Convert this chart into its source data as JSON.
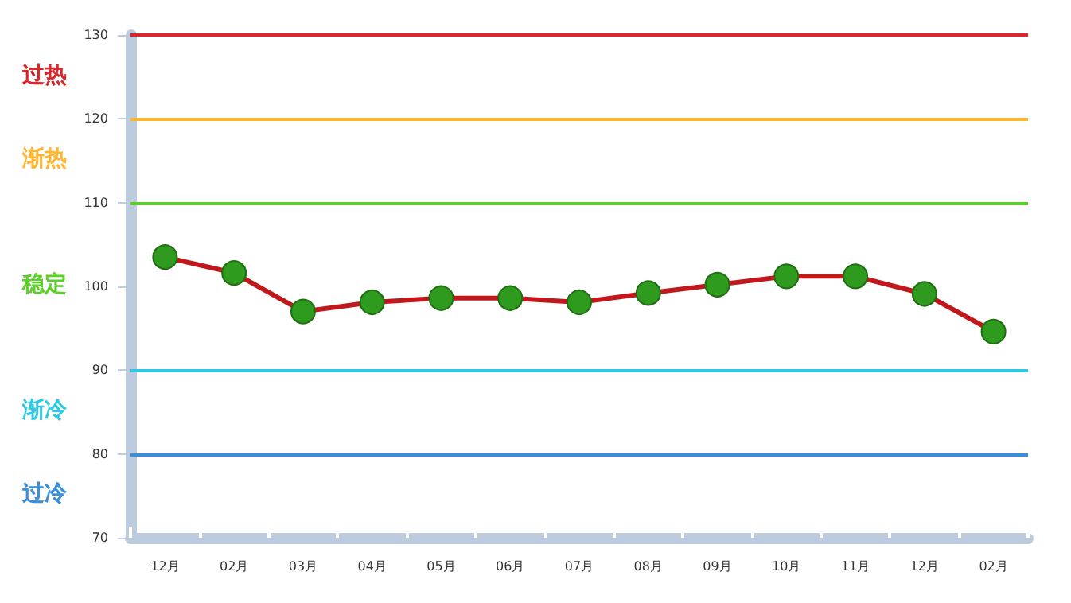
{
  "chart_data": {
    "type": "line",
    "categories": [
      "12月",
      "02月",
      "03月",
      "04月",
      "05月",
      "06月",
      "07月",
      "08月",
      "09月",
      "10月",
      "11月",
      "12月",
      "02月"
    ],
    "series": [
      {
        "color": "#c0181c",
        "colors": [
          "#2e9a1e",
          "#2e9a1e",
          "#2e9a1e",
          "#2e9a1e",
          "#2e9a1e",
          "#2e9a1e",
          "#2e9a1e",
          "#2e9a1e",
          "#2e9a1e",
          "#2e9a1e",
          "#2e9a1e",
          "#2e9a1e",
          "#2e9a1e"
        ],
        "values": [
          103.5,
          101.6,
          97.0,
          98.1,
          98.6,
          98.6,
          98.1,
          99.2,
          100.2,
          101.2,
          101.2,
          99.1,
          94.6
        ]
      }
    ],
    "ylim": [
      70,
      130
    ],
    "yticks": [
      70,
      80,
      90,
      100,
      110,
      120,
      130
    ],
    "grid": false,
    "marker": "circle",
    "line_style": "solid",
    "ref_lines": [
      {
        "axis": "y",
        "value": 130,
        "color": "#d9262a"
      },
      {
        "axis": "y",
        "value": 120,
        "color": "#ffb52e"
      },
      {
        "axis": "y",
        "value": 110,
        "color": "#5ccf2a"
      },
      {
        "axis": "y",
        "value": 90,
        "color": "#2ec8e0"
      },
      {
        "axis": "y",
        "value": 80,
        "color": "#3a8fd9"
      }
    ],
    "annotations": [
      "过热",
      "渐热",
      "稳定",
      "渐冷",
      "过冷"
    ]
  }
}
